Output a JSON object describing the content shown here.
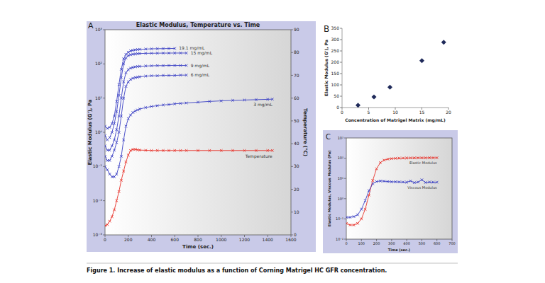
{
  "caption": "Figure 1. Increase of elastic modulus as a function of Corning Matrigel HC GFR concentration.",
  "chart_data": [
    {
      "type": "line",
      "panel": "A",
      "title": "Elastic Modulus, Temperature vs. Time",
      "x_label": "Time (sec.)",
      "y_label": "Elastic Modulus (G'), Pa",
      "y2_label": "Temperature (°C)",
      "log": "y",
      "grid": false,
      "xlim": [
        0,
        1600
      ],
      "xticks": [
        0,
        200,
        400,
        600,
        800,
        1000,
        1200,
        1400,
        1600
      ],
      "ylim": [
        0.001,
        1000
      ],
      "yticks": [
        {
          "value": 0.001,
          "label": "10⁻³"
        },
        {
          "value": 0.01,
          "label": "10⁻²"
        },
        {
          "value": 0.1,
          "label": "10⁻¹"
        },
        {
          "value": 1,
          "label": "10⁰"
        },
        {
          "value": 10,
          "label": "10¹"
        },
        {
          "value": 100,
          "label": "10²"
        },
        {
          "value": 1000,
          "label": "10³"
        }
      ],
      "y2lim": [
        0,
        90
      ],
      "y2ticks": [
        0,
        10,
        20,
        30,
        40,
        50,
        60,
        70,
        80,
        90
      ],
      "series": [
        {
          "name": "19.1 mg/mL",
          "color": "#3a3fc4",
          "marker": "x",
          "line_style": "solid",
          "x": [
            0,
            20,
            40,
            60,
            80,
            100,
            120,
            140,
            160,
            180,
            200,
            220,
            240,
            260,
            280,
            300,
            350,
            400,
            450,
            500,
            550,
            600
          ],
          "values": [
            1.5,
            1.3,
            1.4,
            1.8,
            3,
            8,
            25,
            70,
            140,
            190,
            220,
            240,
            250,
            258,
            263,
            267,
            272,
            276,
            278,
            280,
            282,
            283
          ]
        },
        {
          "name": "15 mg/mL",
          "color": "#3a3fc4",
          "marker": "x",
          "line_style": "solid",
          "x": [
            0,
            20,
            40,
            60,
            80,
            100,
            120,
            140,
            160,
            180,
            200,
            220,
            240,
            260,
            280,
            300,
            350,
            400,
            450,
            500,
            550,
            600,
            650,
            700
          ],
          "values": [
            0.8,
            0.6,
            0.7,
            1,
            1.8,
            4,
            12,
            40,
            100,
            150,
            175,
            185,
            192,
            196,
            199,
            201,
            204,
            205,
            206,
            207,
            207,
            208,
            208,
            208
          ]
        },
        {
          "name": "9 mg/mL",
          "color": "#3a3fc4",
          "marker": "x",
          "line_style": "solid",
          "x": [
            0,
            20,
            40,
            60,
            80,
            100,
            120,
            140,
            160,
            180,
            200,
            220,
            240,
            260,
            280,
            300,
            350,
            400,
            450,
            500,
            550,
            600,
            650,
            700
          ],
          "values": [
            0.4,
            0.3,
            0.3,
            0.4,
            0.6,
            1.2,
            3,
            10,
            30,
            55,
            68,
            75,
            79,
            82,
            84,
            85,
            87,
            88,
            89,
            89,
            90,
            90,
            90,
            90
          ]
        },
        {
          "name": "6 mg/mL",
          "color": "#3a3fc4",
          "marker": "x",
          "line_style": "solid",
          "x": [
            0,
            20,
            40,
            60,
            80,
            100,
            120,
            140,
            160,
            180,
            200,
            220,
            240,
            260,
            280,
            300,
            350,
            400,
            450,
            500,
            550,
            600,
            650,
            700
          ],
          "values": [
            0.2,
            0.15,
            0.15,
            0.2,
            0.3,
            0.5,
            1,
            3,
            10,
            22,
            30,
            35,
            38,
            40,
            41,
            42,
            44,
            45,
            45,
            46,
            46,
            46,
            47,
            47
          ]
        },
        {
          "name": "3 mg/mL",
          "color": "#3a3fc4",
          "marker": "x",
          "line_style": "solid",
          "x": [
            0,
            20,
            40,
            60,
            80,
            100,
            120,
            140,
            160,
            180,
            200,
            220,
            240,
            260,
            280,
            300,
            350,
            400,
            450,
            500,
            550,
            600,
            650,
            700,
            800,
            900,
            1000,
            1100,
            1200,
            1300,
            1400,
            1440
          ],
          "values": [
            0.1,
            0.08,
            0.06,
            0.05,
            0.05,
            0.06,
            0.1,
            0.2,
            0.6,
            1.5,
            2.5,
            3.2,
            3.8,
            4.2,
            4.5,
            4.8,
            5.3,
            5.7,
            6,
            6.3,
            6.5,
            6.8,
            7,
            7.2,
            7.6,
            8,
            8.3,
            8.6,
            8.8,
            9,
            9.2,
            9.3
          ]
        },
        {
          "name": "Temperature",
          "color": "#e8322a",
          "marker": "x",
          "line_style": "solid",
          "axis": "y2",
          "x": [
            0,
            20,
            40,
            60,
            80,
            100,
            120,
            140,
            160,
            180,
            200,
            220,
            240,
            260,
            280,
            300,
            350,
            400,
            450,
            500,
            550,
            600,
            650,
            700,
            800,
            900,
            1000,
            1100,
            1200,
            1300,
            1400,
            1440
          ],
          "values": [
            4,
            4.5,
            6,
            8,
            11,
            15,
            19,
            24,
            28,
            32,
            35,
            37,
            37.5,
            37.5,
            37.3,
            37.2,
            37.1,
            37,
            37,
            37,
            37,
            37,
            37,
            37,
            37,
            37,
            37,
            37,
            37,
            37,
            37,
            37
          ]
        }
      ]
    },
    {
      "type": "scatter",
      "panel": "B",
      "x_label": "Concentration of Matrigel Matrix (mg/mL)",
      "y_label": "Elastic Modulus (G'), Pa",
      "grid": false,
      "color": "#1f2a5a",
      "marker": "diamond",
      "xlim": [
        0,
        20
      ],
      "xticks": [
        0,
        5,
        10,
        15,
        20
      ],
      "ylim": [
        0,
        350
      ],
      "yticks": [
        0,
        50,
        100,
        150,
        200,
        250,
        300,
        350
      ],
      "x": [
        3,
        6,
        9,
        15,
        19.1
      ],
      "values": [
        10,
        47,
        90,
        207,
        288
      ]
    },
    {
      "type": "line",
      "panel": "C",
      "x_label": "Time (sec.)",
      "y_label": "Elastic Modulus, Viscous Modulus (Pa)",
      "log": "y",
      "grid": false,
      "xlim": [
        0,
        700
      ],
      "xticks": [
        0,
        100,
        200,
        300,
        400,
        500,
        600,
        700
      ],
      "ylim": [
        0.01,
        1000
      ],
      "yticks": [
        {
          "value": 0.01,
          "label": "10⁻²"
        },
        {
          "value": 0.1,
          "label": "10⁻¹"
        },
        {
          "value": 1,
          "label": "10⁰"
        },
        {
          "value": 10,
          "label": "10¹"
        },
        {
          "value": 100,
          "label": "10²"
        },
        {
          "value": 1000,
          "label": "10³"
        }
      ],
      "series": [
        {
          "name": "Elastic Modulus",
          "color": "#e8322a",
          "marker": "x",
          "line_style": "solid",
          "x": [
            0,
            25,
            50,
            75,
            100,
            125,
            150,
            175,
            200,
            225,
            250,
            275,
            300,
            325,
            350,
            375,
            400,
            425,
            450,
            475,
            500,
            525,
            550,
            575,
            600
          ],
          "values": [
            0.06,
            0.05,
            0.05,
            0.06,
            0.1,
            0.3,
            1.5,
            8,
            30,
            60,
            80,
            90,
            95,
            98,
            100,
            101,
            102,
            103,
            103,
            104,
            104,
            104,
            105,
            105,
            105
          ]
        },
        {
          "name": "Viscous Modulus",
          "color": "#3a3fc4",
          "marker": "x",
          "line_style": "solid",
          "x": [
            0,
            25,
            50,
            75,
            100,
            125,
            150,
            175,
            200,
            225,
            250,
            275,
            300,
            325,
            350,
            375,
            400,
            425,
            450,
            475,
            500,
            525,
            550,
            575,
            600
          ],
          "values": [
            0.12,
            0.12,
            0.13,
            0.16,
            0.3,
            0.8,
            2.5,
            5.5,
            7,
            7.5,
            7.3,
            7,
            6.8,
            6.8,
            6.7,
            6.6,
            6.5,
            7.5,
            6.2,
            6.6,
            8.5,
            6.3,
            6.6,
            6.5,
            6.5
          ]
        }
      ]
    }
  ]
}
